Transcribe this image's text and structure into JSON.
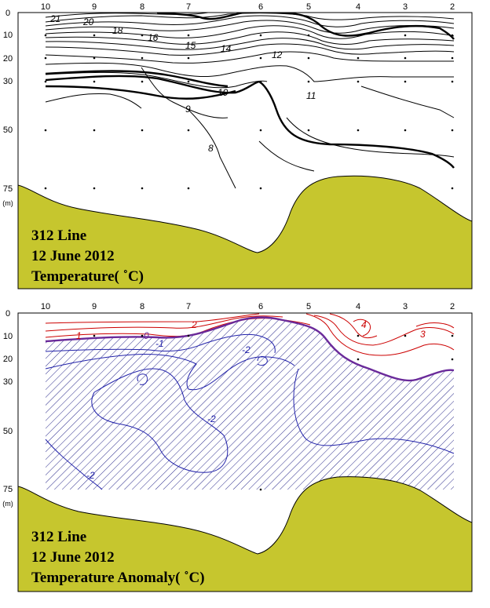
{
  "chart_data": [
    {
      "type": "contour",
      "title_lines": [
        "312 Line",
        "12 June 2012",
        "Temperature( ˚C)"
      ],
      "x_ticks": [
        "10",
        "9",
        "8",
        "7",
        "6",
        "5",
        "4",
        "3",
        "2"
      ],
      "depth_ticks": [
        "0",
        "10",
        "20",
        "30",
        "50",
        "75"
      ],
      "depth_unit": "(m)",
      "contour_labels": [
        "21",
        "20",
        "18",
        "16",
        "15",
        "14",
        "12",
        "10",
        "11",
        "9",
        "8"
      ],
      "contour_line_color": "#000000",
      "bottom_color": "#c6c62e"
    },
    {
      "type": "contour",
      "title_lines": [
        "312 Line",
        "12 June 2012",
        "Temperature Anomaly( ˚C)"
      ],
      "x_ticks": [
        "10",
        "9",
        "8",
        "7",
        "6",
        "5",
        "4",
        "3",
        "2"
      ],
      "depth_ticks": [
        "0",
        "10",
        "20",
        "30",
        "50",
        "75"
      ],
      "depth_unit": "(m)",
      "contour_labels": [
        "2",
        "1",
        "0",
        "-1",
        "4",
        "3",
        "-2",
        "-2",
        "-2"
      ],
      "positive_color": "#cc0000",
      "negative_color": "#2222aa",
      "zero_line_color": "#6a2a9a",
      "negative_region": "hatched",
      "bottom_color": "#c6c62e"
    }
  ]
}
